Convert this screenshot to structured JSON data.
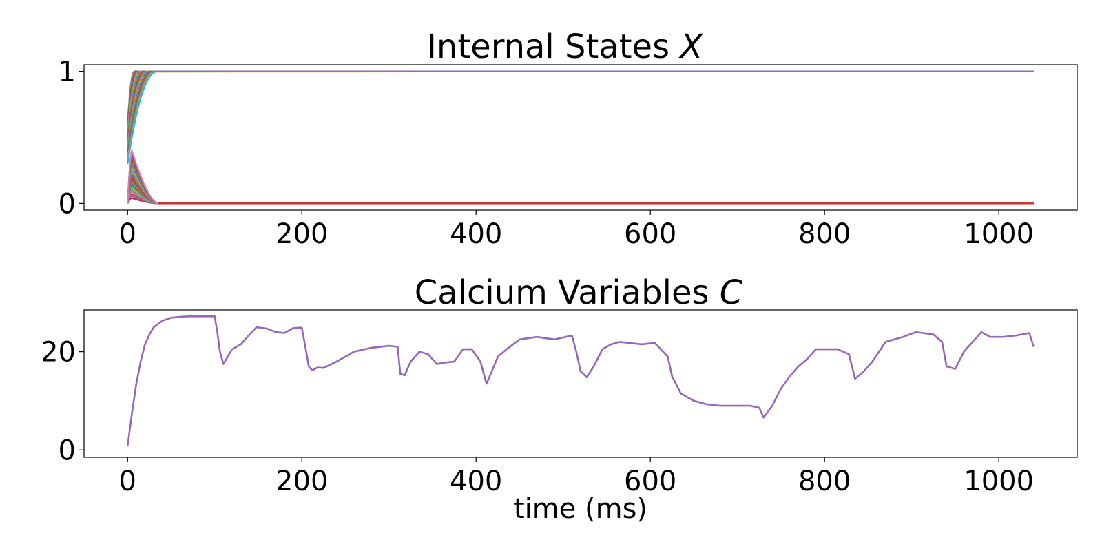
{
  "chart_data": [
    {
      "type": "line",
      "title": "Internal States ",
      "title_var": "X",
      "xlabel": "",
      "ylabel": "",
      "xlim": [
        -50,
        1090
      ],
      "ylim": [
        -0.05,
        1.05
      ],
      "xticks": [
        "0",
        "200",
        "400",
        "600",
        "800",
        "1000"
      ],
      "yticks": [
        "0",
        "1"
      ],
      "xtick_values": [
        0,
        200,
        400,
        600,
        800,
        1000
      ],
      "ytick_values": [
        0,
        1
      ],
      "grid": false,
      "legend": "none",
      "description_series": {
        "rising_to_1": {
          "count": 30,
          "start_range": [
            0.3,
            0.6
          ],
          "settle_time_range": [
            8,
            35
          ],
          "final": 1
        },
        "decaying_to_0": {
          "count": 24,
          "peak_range": [
            0.04,
            0.4
          ],
          "peak_time": 5,
          "settle_time": 35,
          "final": 0
        }
      },
      "colors": [
        "#1f77b4",
        "#ff7f0e",
        "#2ca02c",
        "#d62728",
        "#9467bd",
        "#8c564b",
        "#e377c2",
        "#7f7f7f",
        "#bcbd22",
        "#17becf"
      ],
      "x_end": 1040
    },
    {
      "type": "line",
      "title": "Calcium Variables ",
      "title_var": "C",
      "xlabel": "time (ms)",
      "ylabel": "",
      "xlim": [
        -50,
        1090
      ],
      "ylim": [
        -1.5,
        28.5
      ],
      "xticks": [
        "0",
        "200",
        "400",
        "600",
        "800",
        "1000"
      ],
      "yticks": [
        "0",
        "20"
      ],
      "xtick_values": [
        0,
        200,
        400,
        600,
        800,
        1000
      ],
      "ytick_values": [
        0,
        20
      ],
      "grid": false,
      "legend": "none",
      "series": [
        {
          "color": "#9467bd",
          "x": [
            0,
            5,
            10,
            15,
            20,
            25,
            30,
            40,
            50,
            60,
            70,
            80,
            90,
            100,
            103,
            106,
            110,
            115,
            120,
            130,
            140,
            148,
            160,
            170,
            180,
            190,
            200,
            205,
            208,
            212,
            218,
            225,
            240,
            260,
            280,
            300,
            310,
            313,
            318,
            325,
            335,
            345,
            355,
            365,
            375,
            385,
            395,
            405,
            412,
            418,
            425,
            435,
            450,
            470,
            490,
            510,
            515,
            520,
            527,
            535,
            545,
            555,
            565,
            575,
            590,
            605,
            620,
            625,
            635,
            650,
            665,
            680,
            700,
            715,
            725,
            730,
            740,
            750,
            760,
            770,
            780,
            790,
            800,
            815,
            828,
            835,
            845,
            855,
            870,
            890,
            905,
            925,
            935,
            940,
            950,
            960,
            970,
            980,
            990,
            1005,
            1020,
            1035,
            1040
          ],
          "y": [
            0.8,
            7.5,
            13.5,
            18,
            21.5,
            23.5,
            25,
            26.3,
            26.9,
            27.1,
            27.2,
            27.2,
            27.2,
            27.2,
            24,
            20,
            17.5,
            19,
            20.5,
            21.5,
            23.5,
            25,
            24.7,
            24,
            23.8,
            24.8,
            24.9,
            20,
            17,
            16.2,
            16.8,
            16.7,
            18,
            20,
            20.8,
            21.2,
            21,
            15.5,
            15.2,
            18,
            20,
            19.5,
            17.5,
            17.8,
            18,
            20.5,
            20.5,
            18,
            13.5,
            16,
            19,
            20.5,
            22.5,
            23,
            22.5,
            23.3,
            20,
            16,
            14.8,
            17,
            20.5,
            21.5,
            22,
            21.8,
            21.5,
            21.8,
            19,
            15,
            11.5,
            10,
            9.3,
            9.0,
            9.0,
            9.0,
            8.6,
            6.6,
            9,
            12.5,
            15,
            17,
            18.5,
            20.5,
            20.5,
            20.5,
            19.5,
            14.5,
            16,
            18,
            22,
            23,
            24,
            23.5,
            22,
            17,
            16.5,
            20,
            22,
            24,
            23,
            23,
            23.3,
            23.8,
            21
          ]
        }
      ],
      "x_end": 1040
    }
  ]
}
